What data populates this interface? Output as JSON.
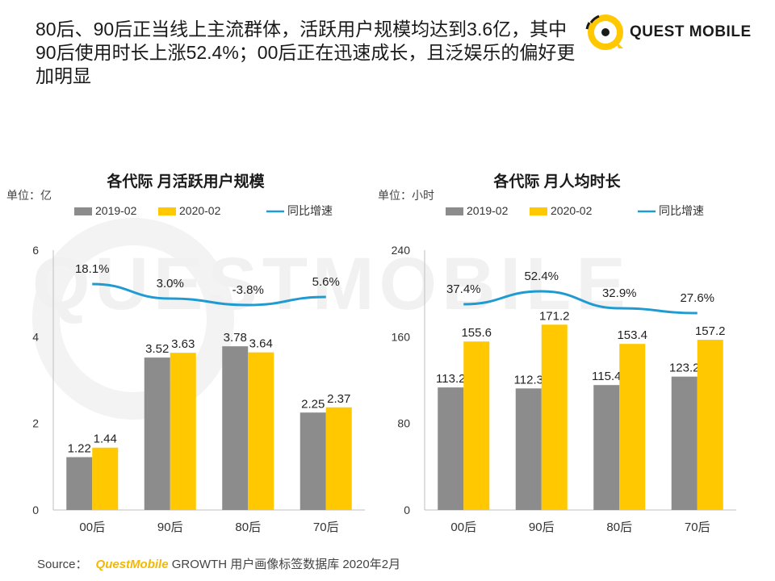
{
  "headline": "80后、90后正当线上主流群体，活跃用户规模均达到3.6亿，其中90后使用时长上涨52.4%；00后正在迅速成长，且泛娱乐的偏好更加明显",
  "logo": {
    "text": "QUEST MOBILE",
    "watermark": "QUESTMOBILE"
  },
  "colors": {
    "gray": "#8c8c8c",
    "yellow": "#ffc800",
    "line": "#1f9bd1",
    "axis": "#bfbfbf"
  },
  "source": {
    "label": "Source：",
    "brand": "QuestMobile",
    "text": "GROWTH 用户画像标签数据库 2020年2月"
  },
  "chart_data": [
    {
      "type": "bar",
      "title": "各代际 月活跃用户规模",
      "unit": "单位：亿",
      "categories": [
        "00后",
        "90后",
        "80后",
        "70后"
      ],
      "ylim": [
        0,
        6
      ],
      "yticks": [
        "0",
        "2",
        "4",
        "6"
      ],
      "legend": [
        "2019-02",
        "2020-02",
        "同比增速"
      ],
      "series": [
        {
          "name": "2019-02",
          "values": [
            1.22,
            3.52,
            3.78,
            2.25
          ],
          "labels": [
            "1.22",
            "3.52",
            "3.78",
            "2.25"
          ]
        },
        {
          "name": "2020-02",
          "values": [
            1.44,
            3.63,
            3.64,
            2.37
          ],
          "labels": [
            "1.44",
            "3.63",
            "3.64",
            "2.37"
          ]
        }
      ],
      "growth": {
        "name": "同比增速",
        "labels": [
          "18.1%",
          "3.0%",
          "-3.8%",
          "5.6%"
        ]
      }
    },
    {
      "type": "bar",
      "title": "各代际 月人均时长",
      "unit": "单位：小时",
      "categories": [
        "00后",
        "90后",
        "80后",
        "70后"
      ],
      "ylim": [
        0,
        240
      ],
      "yticks": [
        "0",
        "80",
        "160",
        "240"
      ],
      "legend": [
        "2019-02",
        "2020-02",
        "同比增速"
      ],
      "series": [
        {
          "name": "2019-02",
          "values": [
            113.2,
            112.3,
            115.4,
            123.2
          ],
          "labels": [
            "113.2",
            "112.3",
            "115.4",
            "123.2"
          ]
        },
        {
          "name": "2020-02",
          "values": [
            155.6,
            171.2,
            153.4,
            157.2
          ],
          "labels": [
            "155.6",
            "171.2",
            "153.4",
            "157.2"
          ]
        }
      ],
      "growth": {
        "name": "同比增速",
        "labels": [
          "37.4%",
          "52.4%",
          "32.9%",
          "27.6%"
        ]
      }
    }
  ]
}
